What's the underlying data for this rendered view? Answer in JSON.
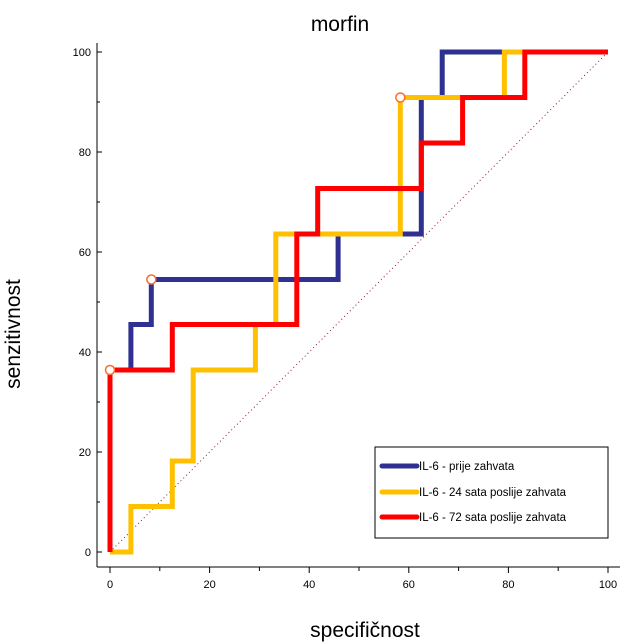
{
  "chart_data": {
    "type": "line",
    "title": "morfin",
    "xlabel": "specifičnost",
    "ylabel": "senzitivnost",
    "xlim": [
      0,
      100
    ],
    "ylim": [
      0,
      100
    ],
    "xticks": [
      0,
      20,
      40,
      60,
      80,
      100
    ],
    "yticks": [
      0,
      20,
      40,
      60,
      80,
      100
    ],
    "grid": false,
    "legend_position": "bottom-right",
    "reference_line": {
      "from": [
        0,
        0
      ],
      "to": [
        100,
        100
      ],
      "style": "dotted",
      "color": "#8b1a3a"
    },
    "series": [
      {
        "name": "IL-6 - prije zahvata",
        "color": "#2e3192",
        "points": [
          [
            0,
            0
          ],
          [
            0,
            36.4
          ],
          [
            4.2,
            36.4
          ],
          [
            4.2,
            45.5
          ],
          [
            8.3,
            45.5
          ],
          [
            8.3,
            54.5
          ],
          [
            45.8,
            54.5
          ],
          [
            45.8,
            63.6
          ],
          [
            62.5,
            63.6
          ],
          [
            62.5,
            90.9
          ],
          [
            66.7,
            90.9
          ],
          [
            66.7,
            100
          ],
          [
            100,
            100
          ]
        ],
        "marker": [
          8.3,
          54.5
        ]
      },
      {
        "name": "IL-6 - 24 sata poslije zahvata",
        "color": "#ffc000",
        "points": [
          [
            0,
            0
          ],
          [
            4.2,
            0
          ],
          [
            4.2,
            9.1
          ],
          [
            12.5,
            9.1
          ],
          [
            12.5,
            18.2
          ],
          [
            16.7,
            18.2
          ],
          [
            16.7,
            36.4
          ],
          [
            29.2,
            36.4
          ],
          [
            29.2,
            45.5
          ],
          [
            33.3,
            45.5
          ],
          [
            33.3,
            63.6
          ],
          [
            58.3,
            63.6
          ],
          [
            58.3,
            90.9
          ],
          [
            79.2,
            90.9
          ],
          [
            79.2,
            100
          ],
          [
            100,
            100
          ]
        ],
        "marker": [
          58.3,
          90.9
        ]
      },
      {
        "name": "IL-6 - 72 sata poslije zahvata",
        "color": "#ff0000",
        "points": [
          [
            0,
            0
          ],
          [
            0,
            36.4
          ],
          [
            12.5,
            36.4
          ],
          [
            12.5,
            45.5
          ],
          [
            37.5,
            45.5
          ],
          [
            37.5,
            63.6
          ],
          [
            41.7,
            63.6
          ],
          [
            41.7,
            72.7
          ],
          [
            62.5,
            72.7
          ],
          [
            62.5,
            81.8
          ],
          [
            70.8,
            81.8
          ],
          [
            70.8,
            90.9
          ],
          [
            83.3,
            90.9
          ],
          [
            83.3,
            100
          ],
          [
            100,
            100
          ]
        ],
        "marker": [
          0,
          36.4
        ]
      }
    ]
  }
}
